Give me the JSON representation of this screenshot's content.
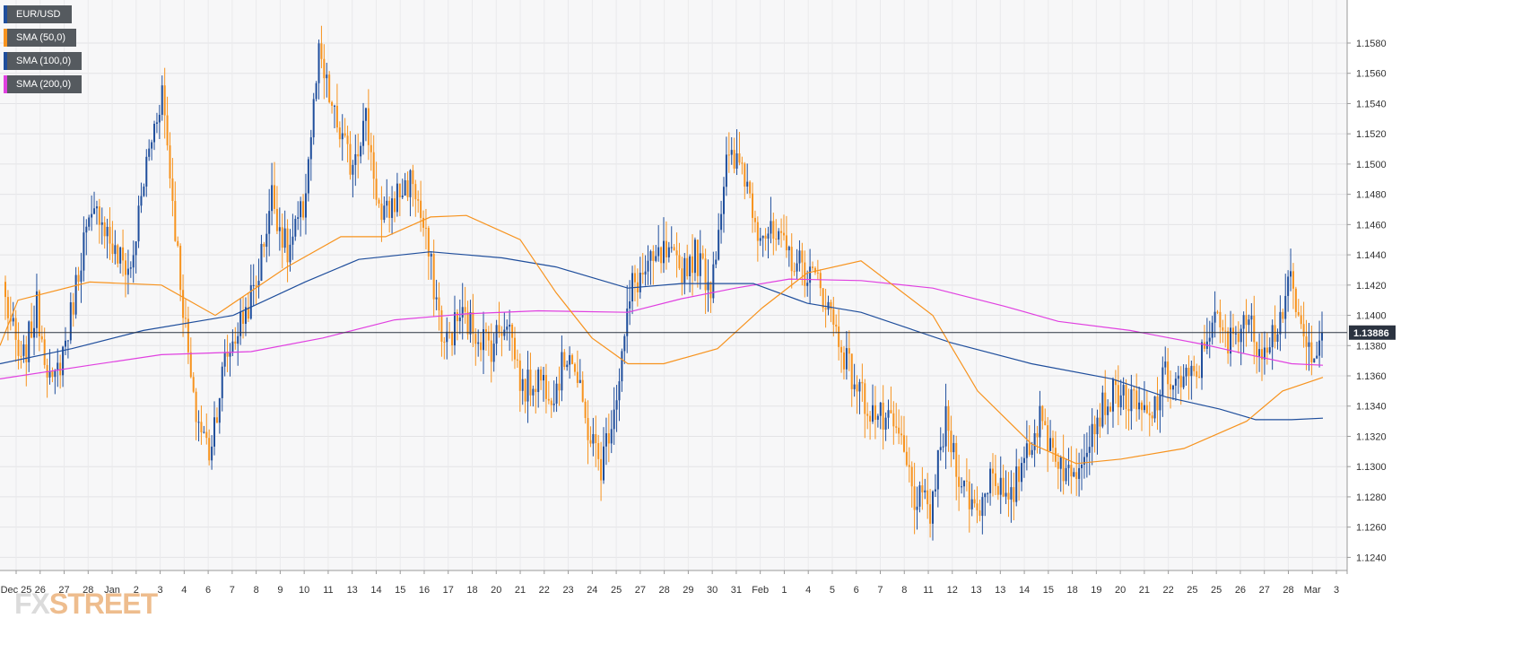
{
  "logo": {
    "fx": "FX",
    "street": "STREET"
  },
  "legend": [
    {
      "label": "EUR/USD",
      "color": "#1f4e9c"
    },
    {
      "label": "SMA (50,0)",
      "color": "#f7931e"
    },
    {
      "label": "SMA (100,0)",
      "color": "#1f4e9c"
    },
    {
      "label": "SMA (200,0)",
      "color": "#e040e0"
    }
  ],
  "chart_data": {
    "type": "candlestick",
    "symbol": "EUR/USD",
    "timeframe_note": "4-hour candles",
    "ylim": [
      1.1226,
      1.1596
    ],
    "y_ticks": [
      "1.1580",
      "1.1560",
      "1.1540",
      "1.1520",
      "1.1500",
      "1.1480",
      "1.1460",
      "1.1440",
      "1.1420",
      "1.1400",
      "1.1380",
      "1.1360",
      "1.1340",
      "1.1320",
      "1.1300",
      "1.1280",
      "1.1260",
      "1.1240"
    ],
    "x_ticks": [
      "Dec 25",
      "26",
      "27",
      "28",
      "Jan",
      "2",
      "3",
      "4",
      "6",
      "7",
      "8",
      "9",
      "10",
      "11",
      "13",
      "14",
      "15",
      "16",
      "17",
      "18",
      "20",
      "21",
      "22",
      "23",
      "24",
      "25",
      "27",
      "28",
      "29",
      "30",
      "31",
      "Feb",
      "1",
      "4",
      "5",
      "6",
      "7",
      "8",
      "11",
      "12",
      "13",
      "13",
      "14",
      "15",
      "18",
      "19",
      "20",
      "21",
      "22",
      "25",
      "25",
      "26",
      "27",
      "28",
      "Mar",
      "3"
    ],
    "current_price": "1.13886",
    "up_color": "#1f4e9c",
    "down_color": "#f7931e",
    "grid": true,
    "candle_waypoints": [
      1.141,
      1.1365,
      1.1405,
      1.135,
      1.139,
      1.145,
      1.147,
      1.144,
      1.143,
      1.15,
      1.155,
      1.144,
      1.134,
      1.131,
      1.137,
      1.1395,
      1.142,
      1.148,
      1.144,
      1.147,
      1.157,
      1.153,
      1.15,
      1.153,
      1.146,
      1.148,
      1.149,
      1.144,
      1.138,
      1.14,
      1.139,
      1.138,
      1.14,
      1.135,
      1.136,
      1.135,
      1.138,
      1.133,
      1.13,
      1.135,
      1.142,
      1.143,
      1.144,
      1.143,
      1.144,
      1.142,
      1.15,
      1.15,
      1.146,
      1.145,
      1.144,
      1.143,
      1.142,
      1.139,
      1.136,
      1.134,
      1.133,
      1.132,
      1.128,
      1.127,
      1.133,
      1.129,
      1.127,
      1.13,
      1.127,
      1.131,
      1.133,
      1.131,
      1.129,
      1.132,
      1.134,
      1.135,
      1.134,
      1.133,
      1.136,
      1.1355,
      1.136,
      1.14,
      1.138,
      1.14,
      1.138,
      1.139,
      1.142,
      1.1375,
      1.1388
    ],
    "sma50": [
      [
        0,
        1.138
      ],
      [
        20,
        1.141
      ],
      [
        100,
        1.1422
      ],
      [
        180,
        1.142
      ],
      [
        240,
        1.14
      ],
      [
        320,
        1.1432
      ],
      [
        380,
        1.1452
      ],
      [
        430,
        1.1452
      ],
      [
        480,
        1.1465
      ],
      [
        520,
        1.1466
      ],
      [
        580,
        1.145
      ],
      [
        620,
        1.1415
      ],
      [
        660,
        1.1385
      ],
      [
        700,
        1.1368
      ],
      [
        740,
        1.1368
      ],
      [
        800,
        1.1378
      ],
      [
        850,
        1.1405
      ],
      [
        900,
        1.1428
      ],
      [
        960,
        1.1436
      ],
      [
        1040,
        1.14
      ],
      [
        1090,
        1.135
      ],
      [
        1150,
        1.1315
      ],
      [
        1200,
        1.1302
      ],
      [
        1250,
        1.1305
      ],
      [
        1320,
        1.1312
      ],
      [
        1390,
        1.133
      ],
      [
        1430,
        1.135
      ],
      [
        1475,
        1.1359
      ]
    ],
    "sma100": [
      [
        0,
        1.1368
      ],
      [
        80,
        1.1378
      ],
      [
        160,
        1.139
      ],
      [
        260,
        1.14
      ],
      [
        340,
        1.1422
      ],
      [
        400,
        1.1437
      ],
      [
        480,
        1.1442
      ],
      [
        560,
        1.1438
      ],
      [
        620,
        1.1432
      ],
      [
        700,
        1.1418
      ],
      [
        760,
        1.1421
      ],
      [
        840,
        1.1421
      ],
      [
        900,
        1.1408
      ],
      [
        960,
        1.1402
      ],
      [
        1060,
        1.1382
      ],
      [
        1150,
        1.1368
      ],
      [
        1240,
        1.1358
      ],
      [
        1300,
        1.1346
      ],
      [
        1360,
        1.1338
      ],
      [
        1400,
        1.1331
      ],
      [
        1440,
        1.1331
      ],
      [
        1475,
        1.1332
      ]
    ],
    "sma200": [
      [
        0,
        1.1358
      ],
      [
        100,
        1.1367
      ],
      [
        180,
        1.1374
      ],
      [
        280,
        1.1376
      ],
      [
        360,
        1.1385
      ],
      [
        440,
        1.1397
      ],
      [
        520,
        1.1401
      ],
      [
        600,
        1.1403
      ],
      [
        700,
        1.1402
      ],
      [
        760,
        1.1411
      ],
      [
        820,
        1.1418
      ],
      [
        880,
        1.1424
      ],
      [
        960,
        1.1423
      ],
      [
        1040,
        1.1418
      ],
      [
        1120,
        1.1406
      ],
      [
        1180,
        1.1396
      ],
      [
        1260,
        1.139
      ],
      [
        1340,
        1.1381
      ],
      [
        1400,
        1.1373
      ],
      [
        1440,
        1.1368
      ],
      [
        1475,
        1.1367
      ]
    ]
  }
}
